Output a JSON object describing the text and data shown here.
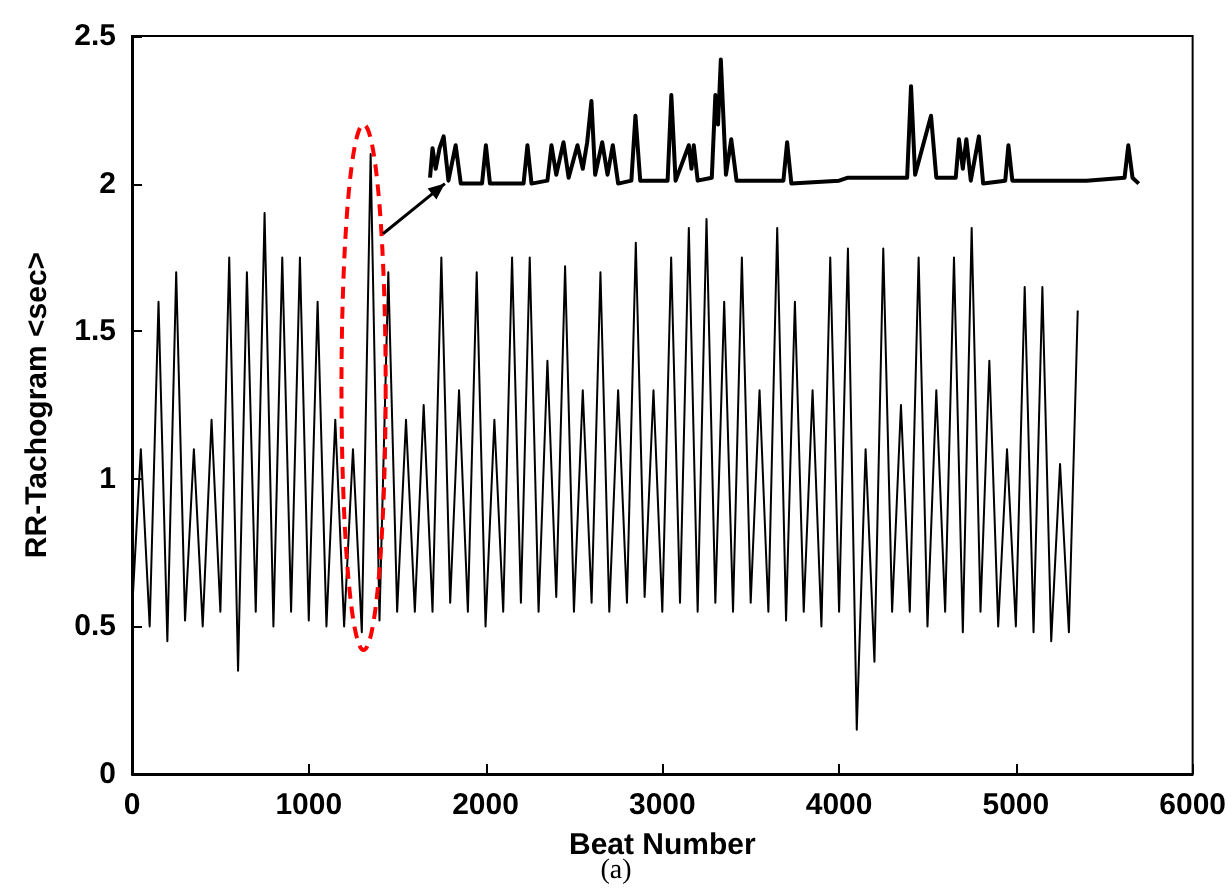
{
  "chart_data": {
    "type": "line",
    "xlabel": "Beat Number",
    "ylabel": "RR-Tachogram <sec>",
    "annotations": [
      "(a)"
    ],
    "xlim": [
      0,
      6000
    ],
    "xticks": [
      0,
      1000,
      2000,
      3000,
      4000,
      5000,
      6000
    ],
    "ylim": [
      0,
      2.5
    ],
    "yticks": [
      0,
      0.5,
      1,
      1.5,
      2,
      2.5
    ],
    "grid": false,
    "marker": "none",
    "line_style": "solid",
    "series": [
      {
        "color": "#000000",
        "x": [
          0,
          50,
          100,
          150,
          200,
          250,
          300,
          350,
          400,
          450,
          500,
          550,
          600,
          650,
          700,
          750,
          800,
          850,
          900,
          950,
          1000,
          1050,
          1100,
          1150,
          1200,
          1250,
          1300,
          1350,
          1400,
          1450,
          1500,
          1550,
          1600,
          1650,
          1700,
          1750,
          1800,
          1850,
          1900,
          1950,
          2000,
          2050,
          2100,
          2150,
          2200,
          2250,
          2300,
          2350,
          2400,
          2450,
          2500,
          2550,
          2600,
          2650,
          2700,
          2750,
          2800,
          2850,
          2900,
          2950,
          3000,
          3050,
          3100,
          3150,
          3200,
          3250,
          3300,
          3350,
          3400,
          3450,
          3500,
          3550,
          3600,
          3650,
          3700,
          3750,
          3800,
          3850,
          3900,
          3950,
          4000,
          4050,
          4100,
          4150,
          4200,
          4250,
          4300,
          4350,
          4400,
          4450,
          4500,
          4550,
          4600,
          4650,
          4700,
          4750,
          4800,
          4850,
          4900,
          4950,
          5000,
          5050,
          5100,
          5150,
          5200,
          5250,
          5300,
          5350
        ],
        "values": [
          0.55,
          1.1,
          0.5,
          1.6,
          0.45,
          1.7,
          0.52,
          1.1,
          0.5,
          1.2,
          0.55,
          1.75,
          0.35,
          1.7,
          0.55,
          1.9,
          0.5,
          1.75,
          0.55,
          1.75,
          0.52,
          1.6,
          0.5,
          1.2,
          0.5,
          1.1,
          0.48,
          2.1,
          0.52,
          1.7,
          0.55,
          1.2,
          0.55,
          1.25,
          0.55,
          1.75,
          0.58,
          1.3,
          0.55,
          1.7,
          0.5,
          1.2,
          0.55,
          1.75,
          0.58,
          1.75,
          0.55,
          1.4,
          0.6,
          1.72,
          0.55,
          1.3,
          0.58,
          1.7,
          0.55,
          1.3,
          0.58,
          1.8,
          0.6,
          1.3,
          0.55,
          1.75,
          0.58,
          1.85,
          0.55,
          1.88,
          0.58,
          1.6,
          0.55,
          1.75,
          0.58,
          1.3,
          0.55,
          1.85,
          0.52,
          1.6,
          0.55,
          1.3,
          0.5,
          1.75,
          0.55,
          1.78,
          0.15,
          1.1,
          0.38,
          1.78,
          0.55,
          1.25,
          0.55,
          1.75,
          0.5,
          1.3,
          0.55,
          1.75,
          0.48,
          1.85,
          0.55,
          1.4,
          0.5,
          1.1,
          0.5,
          1.65,
          0.48,
          1.65,
          0.45,
          1.05,
          0.48,
          1.57
        ]
      },
      {
        "color": "#000000",
        "x": [
          1686,
          1700,
          1718,
          1740,
          1763,
          1790,
          1831,
          1860,
          1980,
          2002,
          2025,
          2215,
          2237,
          2260,
          2350,
          2373,
          2400,
          2441,
          2470,
          2520,
          2550,
          2575,
          2599,
          2620,
          2660,
          2690,
          2720,
          2750,
          2825,
          2848,
          2875,
          3030,
          3051,
          3075,
          3150,
          3165,
          3178,
          3200,
          3280,
          3300,
          3315,
          3331,
          3360,
          3390,
          3420,
          3685,
          3706,
          3730,
          4000,
          4050,
          4200,
          4385,
          4407,
          4430,
          4520,
          4550,
          4660,
          4678,
          4700,
          4720,
          4745,
          4791,
          4815,
          4940,
          4958,
          4980,
          5400,
          5615,
          5636,
          5660,
          5695
        ],
        "values": [
          2.02,
          2.12,
          2.05,
          2.12,
          2.16,
          2.01,
          2.13,
          2.0,
          2.0,
          2.13,
          2.0,
          2.0,
          2.13,
          2.0,
          2.01,
          2.13,
          2.03,
          2.14,
          2.02,
          2.13,
          2.05,
          2.14,
          2.28,
          2.03,
          2.14,
          2.03,
          2.13,
          2.0,
          2.01,
          2.23,
          2.01,
          2.01,
          2.3,
          2.01,
          2.13,
          2.05,
          2.13,
          2.01,
          2.02,
          2.3,
          2.2,
          2.42,
          2.03,
          2.15,
          2.01,
          2.01,
          2.14,
          2.0,
          2.01,
          2.02,
          2.02,
          2.02,
          2.33,
          2.03,
          2.23,
          2.02,
          2.02,
          2.15,
          2.05,
          2.15,
          2.01,
          2.16,
          2.0,
          2.01,
          2.13,
          2.01,
          2.01,
          2.02,
          2.13,
          2.02,
          2.0
        ]
      }
    ]
  }
}
